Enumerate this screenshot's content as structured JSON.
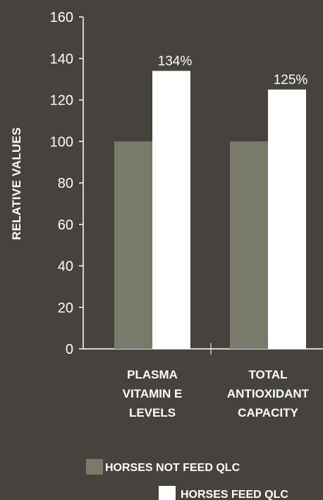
{
  "chart_data": {
    "type": "bar",
    "categories": [
      [
        "PLASMA",
        "VITAMIN E",
        "LEVELS"
      ],
      [
        "TOTAL",
        "ANTIOXIDANT",
        "CAPACITY"
      ]
    ],
    "series": [
      {
        "name": "HORSES NOT FEED QLC",
        "values": [
          100,
          100
        ],
        "color": "#7a7a6b",
        "labels": [
          "",
          ""
        ]
      },
      {
        "name": "HORSES FEED QLC",
        "values": [
          134,
          125
        ],
        "color": "#ffffff",
        "labels": [
          "134%",
          "125%"
        ]
      }
    ],
    "ylabel": "RELATIVE VALUES",
    "xlabel": "",
    "title": "",
    "ylim": [
      0,
      160
    ],
    "yticks": [
      0,
      20,
      40,
      60,
      80,
      100,
      120,
      140,
      160
    ],
    "grid": false,
    "legend_position": "bottom",
    "axis_color": "#ffffff",
    "background": "#46423e"
  }
}
